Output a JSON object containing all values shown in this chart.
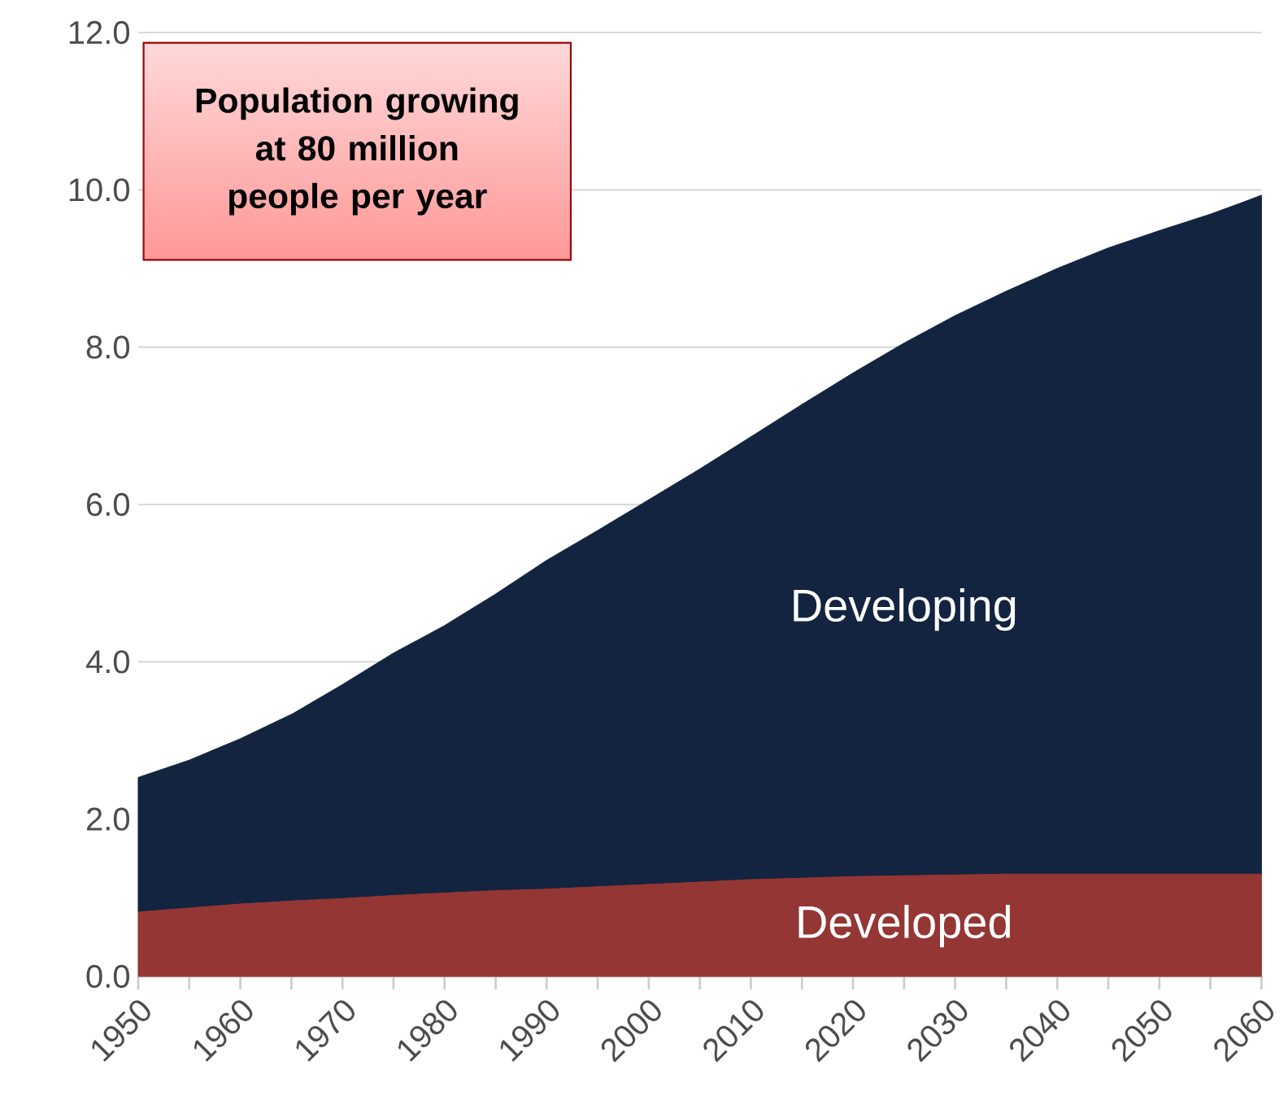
{
  "chart_data": {
    "type": "area",
    "stacked": true,
    "grid": "y",
    "x": [
      1950,
      1955,
      1960,
      1965,
      1970,
      1975,
      1980,
      1985,
      1990,
      1995,
      2000,
      2005,
      2010,
      2015,
      2020,
      2025,
      2030,
      2035,
      2040,
      2045,
      2050,
      2055,
      2060
    ],
    "xlim": [
      1950,
      2060
    ],
    "xticks": [
      1950,
      {
        "value": 1955,
        "label": null
      },
      1960,
      {
        "value": 1965,
        "label": null
      },
      1970,
      {
        "value": 1975,
        "label": null
      },
      1980,
      {
        "value": 1985,
        "label": null
      },
      1990,
      {
        "value": 1995,
        "label": null
      },
      2000,
      {
        "value": 2005,
        "label": null
      },
      2010,
      {
        "value": 2015,
        "label": null
      },
      2020,
      {
        "value": 2025,
        "label": null
      },
      2030,
      {
        "value": 2035,
        "label": null
      },
      2040,
      {
        "value": 2045,
        "label": null
      },
      2050,
      {
        "value": 2055,
        "label": null
      },
      2060
    ],
    "ylim": [
      0,
      12
    ],
    "yticks": [
      {
        "value": 0,
        "label": "0.0"
      },
      {
        "value": 2,
        "label": "2.0"
      },
      {
        "value": 4,
        "label": "4.0"
      },
      {
        "value": 6,
        "label": "6.0"
      },
      {
        "value": 8,
        "label": "8.0"
      },
      {
        "value": 10,
        "label": "10.0"
      },
      {
        "value": 12,
        "label": "12.0"
      }
    ],
    "series": [
      {
        "name": "Developed",
        "color": "#943634",
        "values": [
          0.82,
          0.87,
          0.92,
          0.96,
          0.99,
          1.03,
          1.06,
          1.09,
          1.11,
          1.14,
          1.17,
          1.2,
          1.23,
          1.25,
          1.27,
          1.28,
          1.29,
          1.3,
          1.3,
          1.3,
          1.3,
          1.3,
          1.3
        ]
      },
      {
        "name": "Developing",
        "color": "#12243f",
        "values": [
          1.71,
          1.88,
          2.1,
          2.37,
          2.72,
          3.08,
          3.4,
          3.77,
          4.18,
          4.53,
          4.89,
          5.25,
          5.63,
          6.02,
          6.4,
          6.77,
          7.11,
          7.41,
          7.7,
          7.96,
          8.18,
          8.39,
          8.63
        ]
      }
    ],
    "annotations": [
      "Population growing at 80 million people per year"
    ]
  }
}
